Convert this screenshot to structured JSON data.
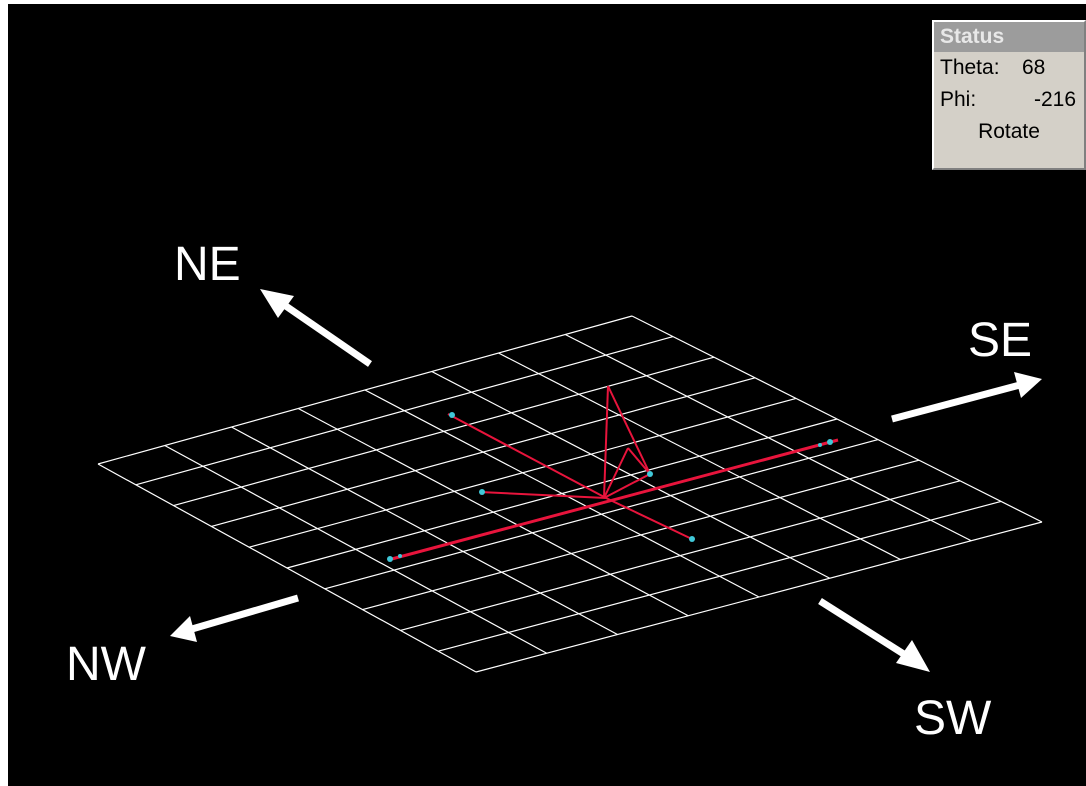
{
  "status": {
    "title": "Status",
    "theta_label": "Theta:",
    "theta_value": "68",
    "phi_label": "Phi:",
    "phi_value": "-216",
    "mode": "Rotate"
  },
  "compass": {
    "ne": "NE",
    "se": "SE",
    "nw": "NW",
    "sw": "SW"
  },
  "colors": {
    "background": "#000000",
    "grid": "#ffffff",
    "trace": "#e8143c",
    "marker": "#40c8d8",
    "panel": "#d4d0c8",
    "panel_title": "#9c9c9c"
  },
  "grid": {
    "divisions_u": 8,
    "divisions_v": 10
  }
}
